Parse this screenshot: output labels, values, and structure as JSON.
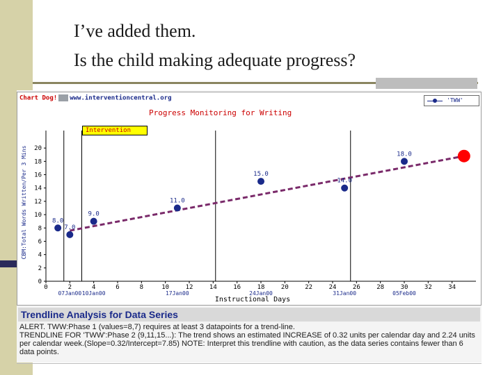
{
  "slide": {
    "line1": "I’ve added them.",
    "line2": "Is the child making adequate progress?"
  },
  "header": {
    "logo": "Chart Dog!",
    "url": "www.interventioncentral.org"
  },
  "legend": {
    "label": "'TWW'"
  },
  "intervention_label": "Intervention",
  "chart_data": {
    "type": "line",
    "title": "Progress Monitoring for Writing",
    "xlabel": "Instructional Days",
    "ylabel": "CBM:Total Words Written/Per 3 Mins",
    "xlim": [
      0,
      36
    ],
    "ylim": [
      0,
      22
    ],
    "x_ticks": [
      0,
      2,
      4,
      6,
      8,
      10,
      12,
      14,
      16,
      18,
      20,
      22,
      24,
      26,
      28,
      30,
      32,
      34
    ],
    "y_ticks": [
      0,
      2,
      4,
      6,
      8,
      10,
      12,
      14,
      16,
      18,
      20
    ],
    "date_labels": [
      {
        "x": 2,
        "label": "07Jan00"
      },
      {
        "x": 4,
        "label": "10Jan00"
      },
      {
        "x": 11,
        "label": "17Jan00"
      },
      {
        "x": 18,
        "label": "24Jan00"
      },
      {
        "x": 25,
        "label": "31Jan00"
      },
      {
        "x": 30,
        "label": "05Feb00"
      }
    ],
    "phase_lines": [
      1.5,
      3,
      14.2,
      25.5
    ],
    "series": [
      {
        "name": "'TWW'",
        "x": [
          1,
          2,
          4,
          11,
          18,
          25,
          30
        ],
        "y": [
          8,
          7,
          9,
          11,
          15,
          14,
          18
        ],
        "labels": [
          "8.0",
          "7.0",
          "9.0",
          "11.0",
          "15.0",
          "14.0",
          "18.0"
        ]
      }
    ],
    "trendline": {
      "x": [
        2,
        35
      ],
      "y": [
        7.6,
        18.8
      ]
    },
    "goal_point": {
      "x": 35,
      "y": 18.8,
      "color": "#ff0000"
    },
    "colors": {
      "series": "#1a2a8a",
      "trend": "#7a2a6a",
      "labels": "#1a2a8a"
    }
  },
  "trendline_analysis": {
    "title": "Trendline Analysis for Data Series",
    "alert": "ALERT. TWW:Phase 1 (values=8,7) requires at least 3 datapoints for a trend-line.",
    "body": "TRENDLINE FOR 'TWW':Phase 2 (9,11,15...): The trend shows an estimated INCREASE of 0.32 units per calendar day and 2.24 units per calendar week.(Slope=0.32/Intercept=7.85) NOTE: Interpret this trendline with caution, as the data series contains fewer than 6 data points."
  }
}
